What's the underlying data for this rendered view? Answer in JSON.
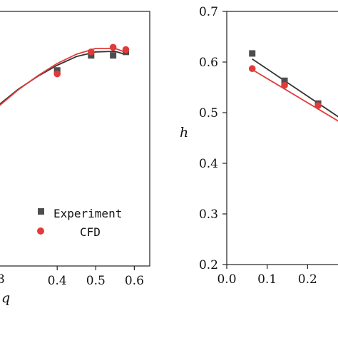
{
  "chart_data": [
    {
      "type": "scatter",
      "xlabel": "q",
      "ylabel": "",
      "xlim": [
        0.248,
        0.64
      ],
      "ylim": [
        0.28,
        0.72
      ],
      "x_ticks": [
        0.4,
        0.5,
        0.6
      ],
      "x_tick_labels": [
        "0.4",
        "0.5",
        "0.6"
      ],
      "x_edge_partial_tick_label": "3",
      "grid": false,
      "legend": {
        "placement": "bottom-right",
        "entries": [
          {
            "name": "Experiment",
            "marker": "square",
            "color": "#4d4d4d"
          },
          {
            "name": "CFD",
            "marker": "circle",
            "color": "#e03a3a"
          }
        ]
      },
      "series": [
        {
          "name": "Experiment",
          "marker": "square",
          "color": "#4d4d4d",
          "x": [
            0.4,
            0.488,
            0.545,
            0.578
          ],
          "y": [
            0.618,
            0.644,
            0.644,
            0.65
          ]
        },
        {
          "name": "CFD",
          "marker": "circle",
          "color": "#e03a3a",
          "x": [
            0.4,
            0.488,
            0.545,
            0.578
          ],
          "y": [
            0.612,
            0.65,
            0.658,
            0.654
          ]
        }
      ],
      "fits": [
        {
          "series": "Experiment",
          "color": "#333333",
          "x": [
            0.248,
            0.3,
            0.35,
            0.4,
            0.45,
            0.5,
            0.55,
            0.575
          ],
          "y": [
            0.558,
            0.586,
            0.608,
            0.627,
            0.642,
            0.65,
            0.651,
            0.646
          ]
        },
        {
          "series": "CFD",
          "color": "#e03a3a",
          "x": [
            0.248,
            0.3,
            0.35,
            0.4,
            0.45,
            0.5,
            0.55,
            0.575
          ],
          "y": [
            0.556,
            0.585,
            0.609,
            0.63,
            0.646,
            0.656,
            0.656,
            0.65
          ]
        }
      ]
    },
    {
      "type": "scatter",
      "xlabel": "",
      "ylabel": "h",
      "xlim": [
        0.0,
        0.3
      ],
      "ylim": [
        0.2,
        0.7
      ],
      "x_ticks": [
        0.0,
        0.1,
        0.2
      ],
      "x_tick_labels": [
        "0.0",
        "0.1",
        "0.2"
      ],
      "y_ticks": [
        0.2,
        0.3,
        0.4,
        0.5,
        0.6,
        0.7
      ],
      "y_tick_labels": [
        "0.2",
        "0.3",
        "0.4",
        "0.5",
        "0.6",
        "0.7"
      ],
      "grid": false,
      "series": [
        {
          "name": "Experiment",
          "marker": "square",
          "color": "#4d4d4d",
          "x": [
            0.063,
            0.143,
            0.226
          ],
          "y": [
            0.617,
            0.563,
            0.518
          ]
        },
        {
          "name": "CFD",
          "marker": "circle",
          "color": "#e03a3a",
          "x": [
            0.063,
            0.143,
            0.226
          ],
          "y": [
            0.587,
            0.554,
            0.514
          ]
        }
      ],
      "fits": [
        {
          "series": "Experiment",
          "color": "#333333",
          "x": [
            0.063,
            0.3
          ],
          "y": [
            0.606,
            0.479
          ]
        },
        {
          "series": "CFD",
          "color": "#e03a3a",
          "x": [
            0.063,
            0.3
          ],
          "y": [
            0.585,
            0.472
          ]
        }
      ]
    }
  ]
}
